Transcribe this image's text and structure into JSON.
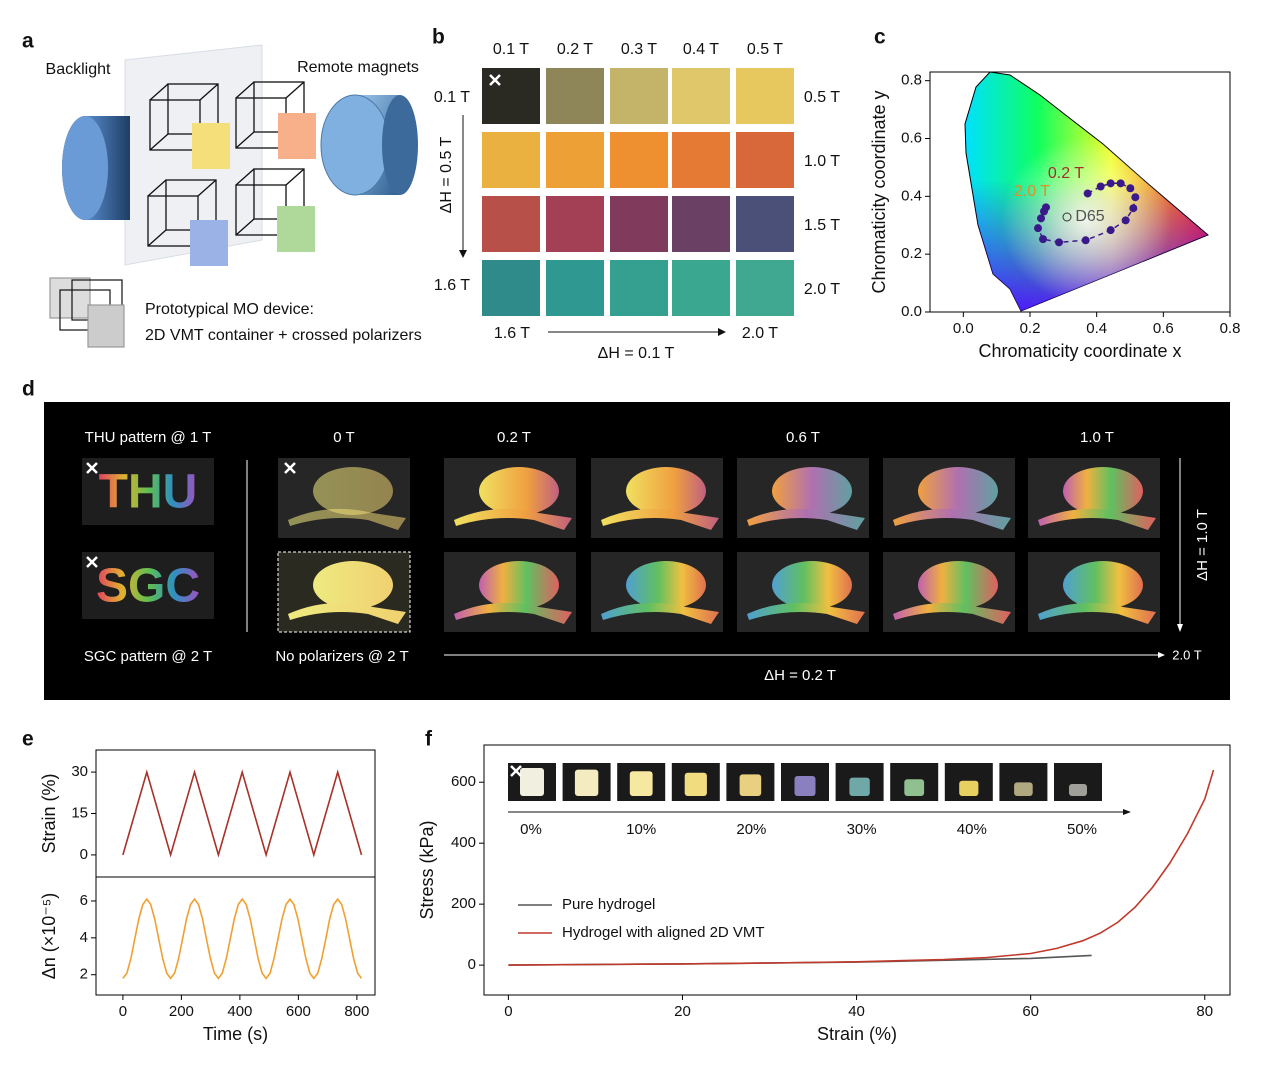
{
  "panels": {
    "a": {
      "label": "a",
      "backlight": "Backlight",
      "magnets": "Remote magnets",
      "device": [
        "Prototypical MO device:",
        "2D VMT container + crossed polarizers"
      ]
    },
    "b": {
      "label": "b",
      "columns": [
        "0.1 T",
        "0.2 T",
        "0.3 T",
        "0.4 T",
        "0.5 T"
      ],
      "rows": [
        "0.5 T",
        "1.0 T",
        "1.5 T",
        "2.0 T"
      ],
      "start": "0.1 T",
      "row_start": "1.6 T",
      "vertical_step": "ΔH = 0.5 T",
      "bottom_start": "1.6 T",
      "bottom_end": "2.0 T",
      "horizontal_step": "ΔH = 0.1 T",
      "swatches": [
        [
          "#2a2a22",
          "#8e8658",
          "#c4b46a",
          "#e0c86a",
          "#e6c85e"
        ],
        [
          "#eab040",
          "#eda035",
          "#ee9030",
          "#e57a35",
          "#d8683a"
        ],
        [
          "#b8504a",
          "#a44055",
          "#803a5c",
          "#6a4064",
          "#4a5078"
        ],
        [
          "#2f8a8a",
          "#2f9890",
          "#35a090",
          "#3aa890",
          "#40a890"
        ]
      ]
    },
    "d": {
      "label": "d",
      "thu_caption": "THU pattern @ 1 T",
      "thu_word": "THU",
      "sgc_word": "SGC",
      "sgc_caption": "SGC pattern @ 2 T",
      "frame_fields": [
        "0 T",
        "0.2 T",
        "0.6 T",
        "1.0 T"
      ],
      "no_polarizers": "No polarizers @ 2 T",
      "end_field": "2.0 T",
      "horizontal_step": "ΔH = 0.2 T",
      "vertical_step": "ΔH = 1.0 T"
    }
  },
  "chart_data": [
    {
      "type": "scatter",
      "panel": "c",
      "xlabel": "Chromaticity coordinate x",
      "ylabel": "Chromaticity coordinate y",
      "xlim": [
        -0.1,
        0.8
      ],
      "ylim": [
        0,
        0.83
      ],
      "xticks": [
        {
          "value": 0,
          "label": "0.0"
        },
        {
          "value": 0.2,
          "label": "0.2"
        },
        {
          "value": 0.4,
          "label": "0.4"
        },
        {
          "value": 0.6,
          "label": "0.6"
        },
        {
          "value": 0.8,
          "label": "0.8"
        }
      ],
      "yticks": [
        {
          "value": 0,
          "label": "0.0"
        },
        {
          "value": 0.2,
          "label": "0.2"
        },
        {
          "value": 0.4,
          "label": "0.4"
        },
        {
          "value": 0.6,
          "label": "0.6"
        },
        {
          "value": 0.8,
          "label": "0.8"
        }
      ],
      "series": [
        {
          "color": "#3a1a8a",
          "x": [
            0.373,
            0.412,
            0.442,
            0.472,
            0.501,
            0.516,
            0.51,
            0.487,
            0.442,
            0.367,
            0.287,
            0.239,
            0.224,
            0.233,
            0.242,
            0.248
          ],
          "values": [
            0.41,
            0.434,
            0.445,
            0.445,
            0.428,
            0.397,
            0.359,
            0.317,
            0.283,
            0.248,
            0.241,
            0.252,
            0.29,
            0.324,
            0.348,
            0.362
          ]
        }
      ],
      "annotations": [
        "0.2 T",
        "2.0 T",
        "D65"
      ]
    },
    {
      "type": "line",
      "panel": "e",
      "ylabel": "Strain (%)",
      "xlim": [
        -92,
        862
      ],
      "ylim": [
        -8,
        38
      ],
      "yticks": [
        0,
        15,
        30
      ],
      "series": [
        {
          "color": "#a8322a",
          "x": [
            0,
            81.6,
            163.2,
            244.8,
            326.4,
            408,
            489.6,
            571.2,
            652.8,
            734.4,
            816
          ],
          "values": [
            0,
            30,
            0,
            30,
            0,
            30,
            0,
            30,
            0,
            30,
            0
          ]
        }
      ]
    },
    {
      "type": "line",
      "ylabel": "Δn (×10⁻⁵)",
      "xlabel": "Time (s)",
      "xlim": [
        -92,
        862
      ],
      "ylim": [
        0.9,
        7.3
      ],
      "xticks": [
        0,
        200,
        400,
        600,
        800
      ],
      "yticks": [
        2,
        4,
        6
      ],
      "series": [
        {
          "color": "#f0a030",
          "x": [
            0,
            13.6,
            27.2,
            40.8,
            54.4,
            68,
            81.6,
            95.2,
            108.8,
            122.4,
            136,
            149.6,
            163.2,
            176.8,
            190.4,
            204,
            217.6,
            231.2,
            244.8,
            258.4,
            272,
            285.6,
            299.2,
            312.8,
            326.4,
            340,
            353.6,
            367.2,
            380.8,
            394.4,
            408,
            421.6,
            435.2,
            448.8,
            462.4,
            476,
            489.6,
            503.2,
            516.8,
            530.4,
            544,
            557.6,
            571.2,
            584.8,
            598.4,
            612,
            625.6,
            639.2,
            652.8,
            666.4,
            680,
            693.6,
            707.2,
            720.8,
            734.4,
            748,
            761.6,
            775.2,
            788.8,
            802.4,
            816
          ],
          "values": [
            1.8,
            2.09,
            2.88,
            3.95,
            5.03,
            5.81,
            6.1,
            5.81,
            5.03,
            3.95,
            2.88,
            2.09,
            1.8,
            2.09,
            2.88,
            3.95,
            5.03,
            5.81,
            6.1,
            5.81,
            5.03,
            3.95,
            2.88,
            2.09,
            1.8,
            2.09,
            2.88,
            3.95,
            5.03,
            5.81,
            6.1,
            5.81,
            5.03,
            3.95,
            2.88,
            2.09,
            1.8,
            2.09,
            2.88,
            3.95,
            5.03,
            5.81,
            6.1,
            5.81,
            5.03,
            3.95,
            2.88,
            2.09,
            1.8,
            2.09,
            2.88,
            3.95,
            5.03,
            5.81,
            6.1,
            5.81,
            5.03,
            3.95,
            2.88,
            2.09,
            1.8
          ]
        }
      ]
    },
    {
      "type": "line",
      "panel": "f",
      "xlabel": "Strain (%)",
      "ylabel": "Stress (kPa)",
      "xlim": [
        -2.8,
        82.9
      ],
      "ylim": [
        -98,
        722
      ],
      "xticks": [
        0,
        20,
        40,
        60,
        80
      ],
      "yticks": [
        0,
        200,
        400,
        600
      ],
      "series": [
        {
          "name": "Pure hydrogel",
          "color": "#555555",
          "x": [
            0,
            20,
            40,
            60,
            67
          ],
          "values": [
            0,
            4,
            10,
            22,
            32
          ]
        },
        {
          "name": "Hydrogel with aligned 2D VMT",
          "color": "#c0392b",
          "x": [
            0,
            10,
            20,
            30,
            40,
            50,
            55,
            60,
            63,
            66,
            68,
            70,
            72,
            74,
            76,
            78,
            80,
            81
          ],
          "values": [
            0,
            2,
            4,
            7,
            11,
            18,
            25,
            38,
            55,
            80,
            105,
            140,
            190,
            255,
            335,
            430,
            545,
            640
          ]
        }
      ],
      "inset_labels": [
        "0%",
        "10%",
        "20%",
        "30%",
        "40%",
        "50%"
      ]
    }
  ]
}
